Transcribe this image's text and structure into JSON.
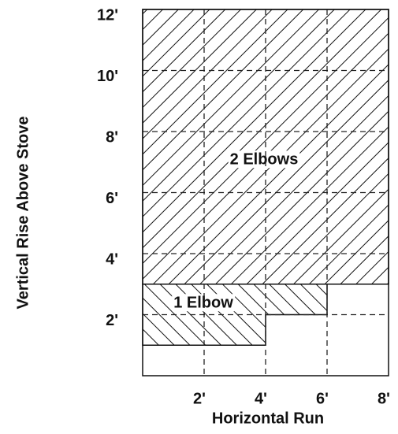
{
  "chart_data": {
    "type": "region",
    "xlabel": "Horizontal Run",
    "ylabel": "Vertical Rise Above Stove",
    "xlim": [
      0,
      8
    ],
    "ylim": [
      0,
      12
    ],
    "xticks": [
      {
        "value": 2,
        "label": "2'"
      },
      {
        "value": 4,
        "label": "4'"
      },
      {
        "value": 6,
        "label": "6'"
      },
      {
        "value": 8,
        "label": "8'"
      }
    ],
    "yticks": [
      {
        "value": 2,
        "label": "2'"
      },
      {
        "value": 4,
        "label": "4'"
      },
      {
        "value": 6,
        "label": "6'"
      },
      {
        "value": 8,
        "label": "8'"
      },
      {
        "value": 10,
        "label": "10'"
      },
      {
        "value": 12,
        "label": "12'"
      }
    ],
    "grid": true,
    "series": [
      {
        "name": "2 Elbows",
        "hatch": "backslash",
        "x": [
          0,
          8,
          8,
          0
        ],
        "y": [
          3,
          3,
          12,
          12
        ]
      },
      {
        "name": "1 Elbow",
        "hatch": "slash",
        "x": [
          0,
          4,
          4,
          6,
          6,
          0
        ],
        "y": [
          1,
          1,
          2,
          2,
          3,
          3
        ]
      }
    ]
  }
}
